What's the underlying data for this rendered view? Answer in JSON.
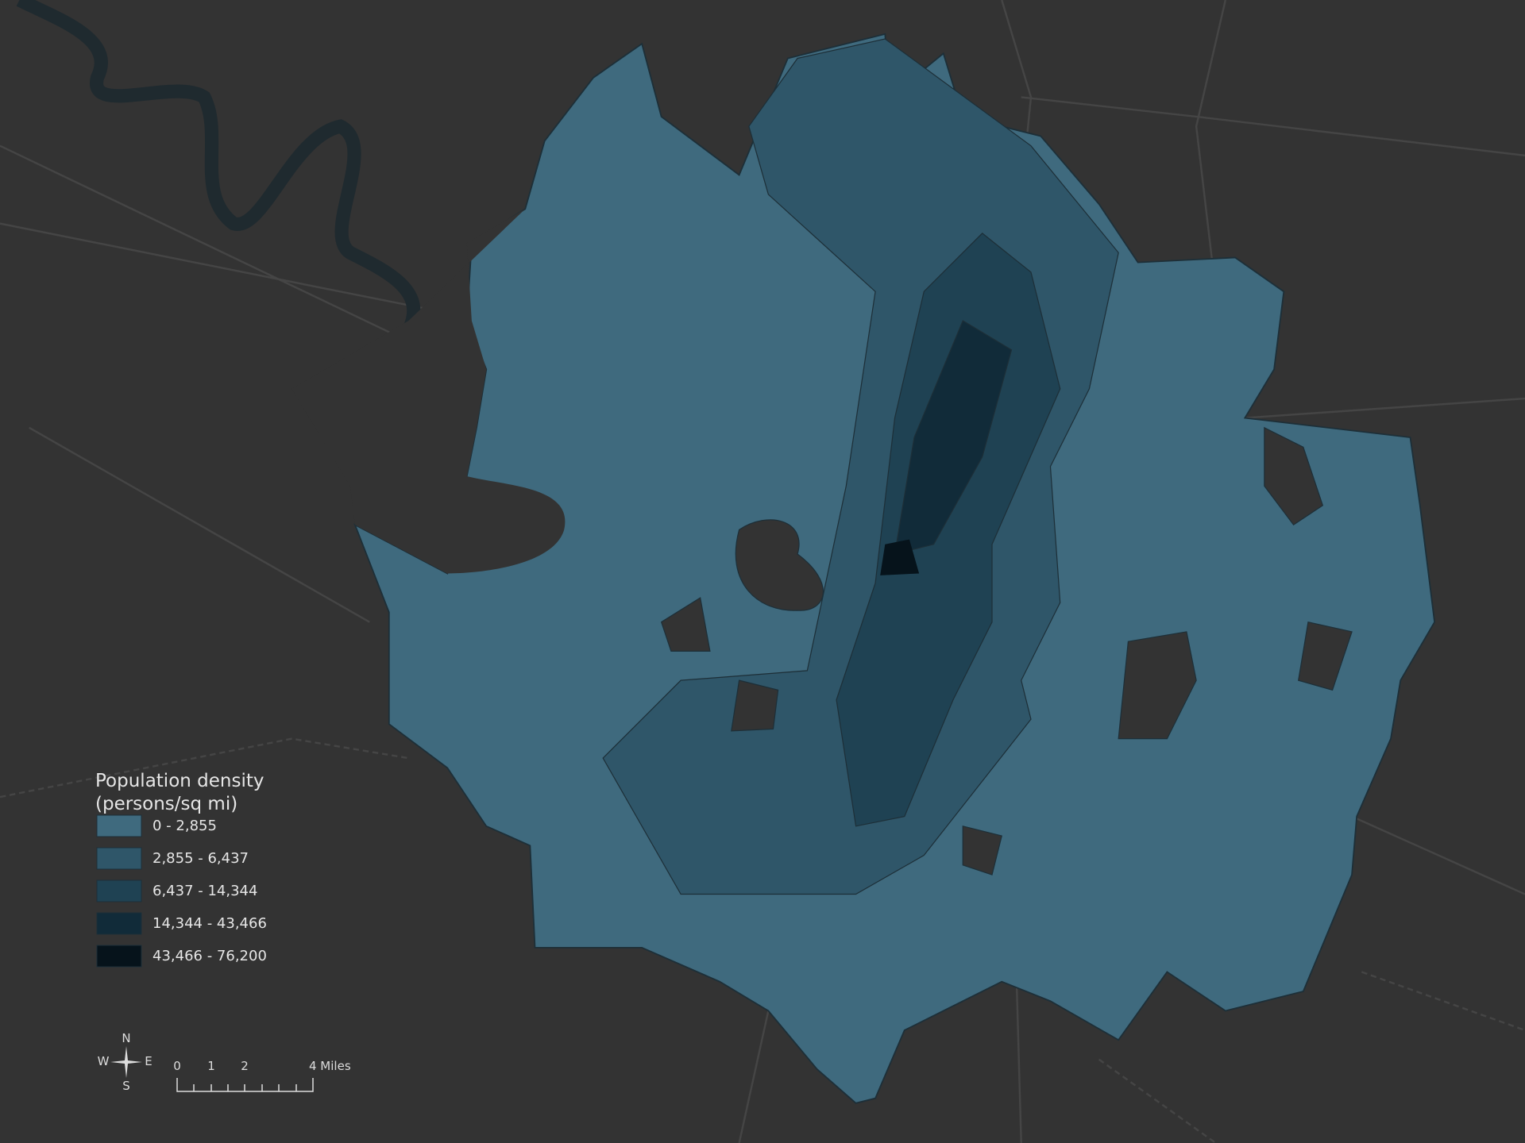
{
  "legend": {
    "title": [
      "Population density",
      "(persons/sq mi)"
    ],
    "items": [
      {
        "label": "0 - 2,855",
        "color": "#3f6a7e"
      },
      {
        "label": "2,855 - 6,437",
        "color": "#2f5669"
      },
      {
        "label": "6,437 - 14,344",
        "color": "#1f4253"
      },
      {
        "label": "14,344 - 43,466",
        "color": "#112b39"
      },
      {
        "label": "43,466 - 76,200",
        "color": "#06131b"
      }
    ]
  },
  "compass": {
    "n": "N",
    "e": "E",
    "s": "S",
    "w": "W"
  },
  "scale_bar": {
    "labels": [
      "0",
      "1",
      "2",
      "4 Miles"
    ]
  }
}
